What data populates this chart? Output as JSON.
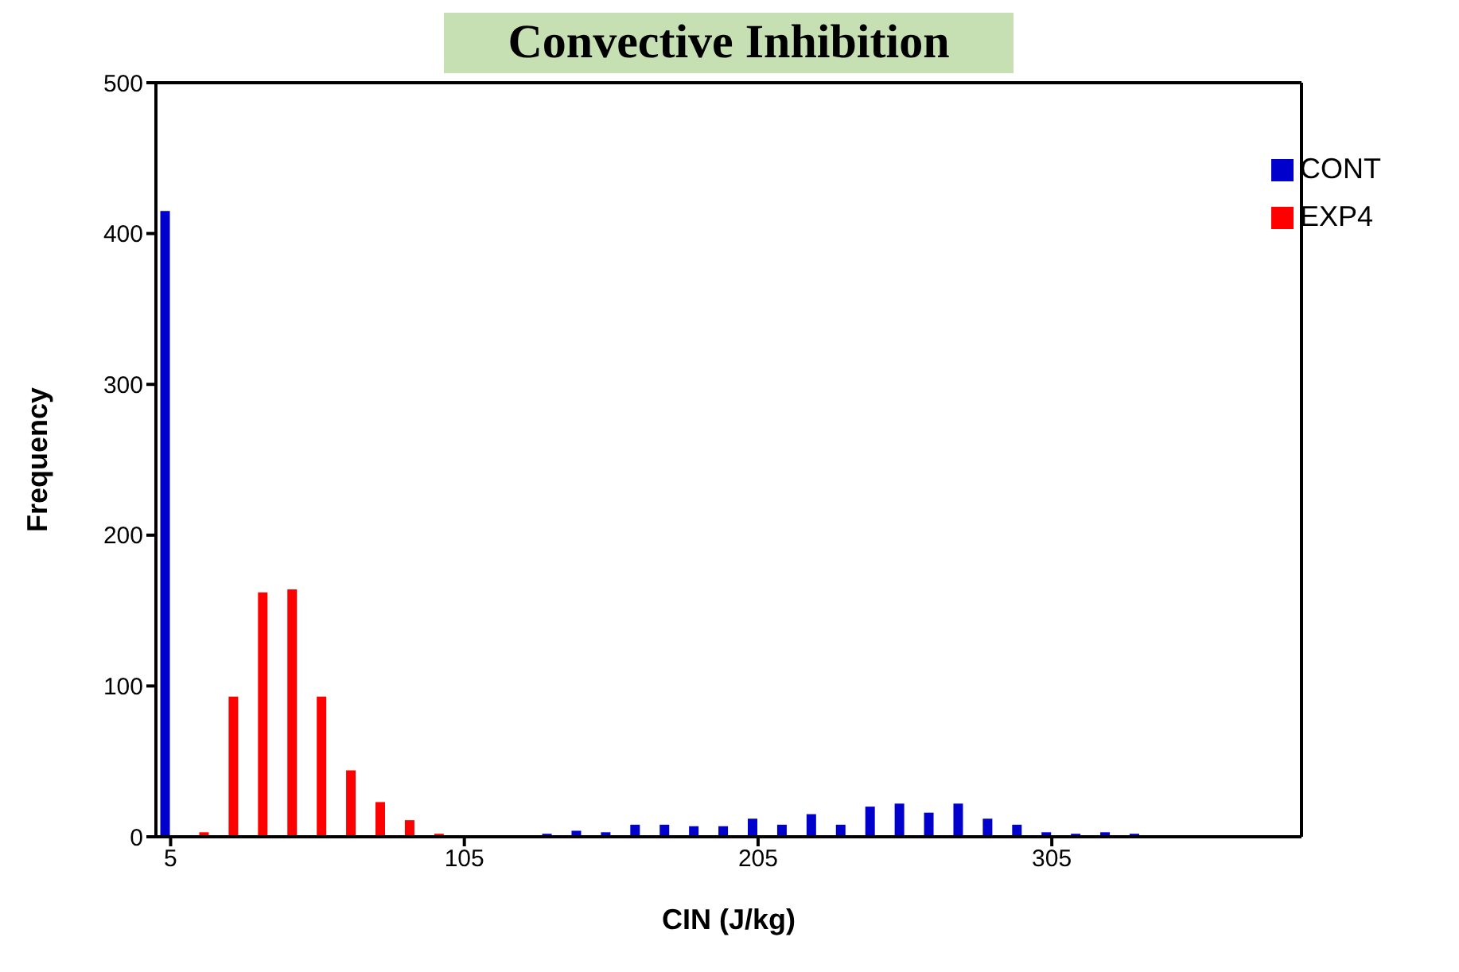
{
  "chart_data": {
    "type": "bar",
    "title": "Convective Inhibition",
    "xlabel": "CIN (J/kg)",
    "ylabel": "Frequency",
    "categories": [
      "5",
      null,
      null,
      null,
      null,
      null,
      null,
      null,
      null,
      null,
      "105",
      null,
      null,
      null,
      null,
      null,
      null,
      null,
      null,
      null,
      "205",
      null,
      null,
      null,
      null,
      null,
      null,
      null,
      null,
      null,
      "305",
      null,
      null,
      null,
      null,
      null,
      null,
      null,
      null
    ],
    "series": [
      {
        "name": "CONT",
        "color": "#0000cc",
        "values": [
          415,
          0,
          0,
          0,
          0,
          0,
          0,
          0,
          0,
          0,
          0,
          0,
          null,
          2,
          4,
          3,
          8,
          8,
          7,
          7,
          12,
          8,
          15,
          8,
          20,
          22,
          16,
          22,
          12,
          8,
          3,
          2,
          3,
          2,
          0,
          0,
          0,
          0,
          0
        ]
      },
      {
        "name": "EXP4",
        "color": "#ff0000",
        "values": [
          0,
          3,
          93,
          162,
          164,
          93,
          44,
          23,
          11,
          2,
          0,
          null,
          null,
          0,
          0,
          0,
          0,
          0,
          0,
          0,
          0,
          0,
          0,
          0,
          0,
          0,
          0,
          0,
          0,
          0,
          0,
          0,
          0,
          0,
          0,
          0,
          0,
          0,
          0
        ]
      }
    ],
    "ylim": [
      0,
      500
    ],
    "yticks": [
      0,
      100,
      200,
      300,
      400,
      500
    ],
    "legend": "top right"
  }
}
